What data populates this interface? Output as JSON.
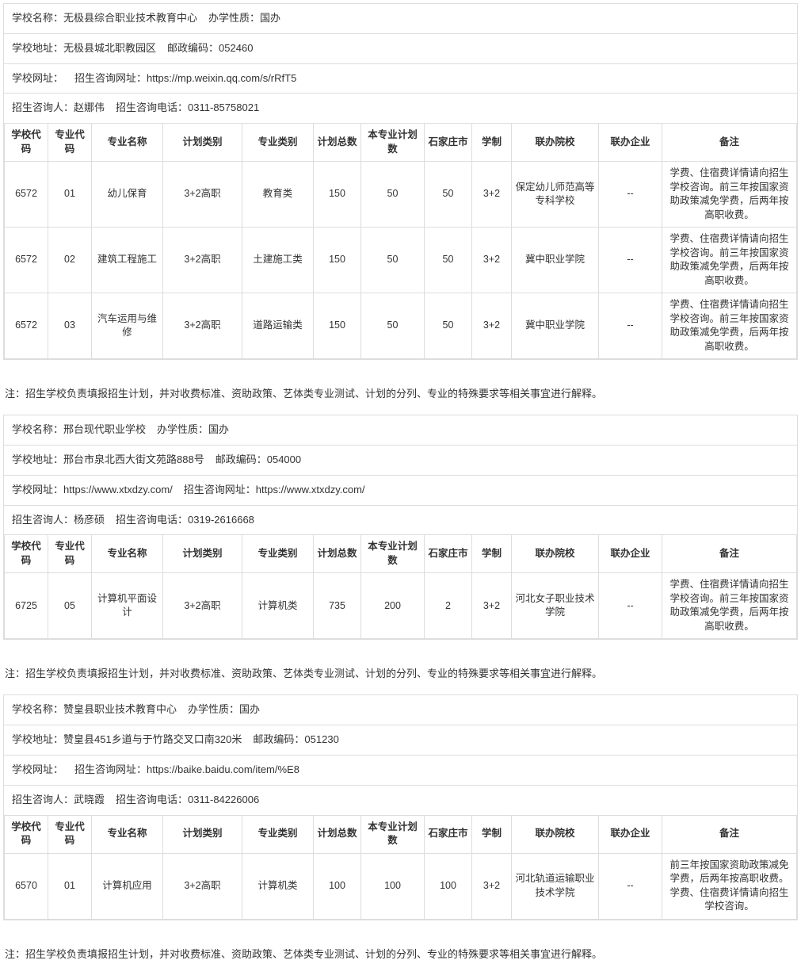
{
  "note_text": "注：招生学校负责填报招生计划，并对收费标准、资助政策、艺体类专业测试、计划的分列、专业的特殊要求等相关事宜进行解释。",
  "headers": {
    "school_code": "学校代码",
    "major_code": "专业代码",
    "major_name": "专业名称",
    "plan_type": "计划类别",
    "major_cat": "专业类别",
    "plan_total": "计划总数",
    "this_plan": "本专业计划数",
    "city": "石家庄市",
    "system": "学制",
    "partner_school": "联办院校",
    "partner_ent": "联办企业",
    "remark": "备注"
  },
  "labels": {
    "school_name": "学校名称：",
    "run_type": "办学性质：",
    "address": "学校地址：",
    "postcode": "邮政编码：",
    "website": "学校网址：",
    "admission_site": "招生咨询网址：",
    "contact": "招生咨询人：",
    "phone": "招生咨询电话："
  },
  "schools": [
    {
      "name": "无极县综合职业技术教育中心",
      "run_type": "国办",
      "address": "无极县城北职教园区",
      "postcode": "052460",
      "website": "",
      "admission_site": "https://mp.weixin.qq.com/s/rRfT5",
      "contact": "赵娜伟",
      "phone": "0311-85758021",
      "rows": [
        {
          "school_code": "6572",
          "major_code": "01",
          "major_name": "幼儿保育",
          "plan_type": "3+2高职",
          "major_cat": "教育类",
          "plan_total": "150",
          "this_plan": "50",
          "city": "50",
          "system": "3+2",
          "partner_school": "保定幼儿师范高等专科学校",
          "partner_ent": "--",
          "remark": "学费、住宿费详情请向招生学校咨询。前三年按国家资助政策减免学费，后两年按高职收费。"
        },
        {
          "school_code": "6572",
          "major_code": "02",
          "major_name": "建筑工程施工",
          "plan_type": "3+2高职",
          "major_cat": "土建施工类",
          "plan_total": "150",
          "this_plan": "50",
          "city": "50",
          "system": "3+2",
          "partner_school": "冀中职业学院",
          "partner_ent": "--",
          "remark": "学费、住宿费详情请向招生学校咨询。前三年按国家资助政策减免学费，后两年按高职收费。"
        },
        {
          "school_code": "6572",
          "major_code": "03",
          "major_name": "汽车运用与维修",
          "plan_type": "3+2高职",
          "major_cat": "道路运输类",
          "plan_total": "150",
          "this_plan": "50",
          "city": "50",
          "system": "3+2",
          "partner_school": "冀中职业学院",
          "partner_ent": "--",
          "remark": "学费、住宿费详情请向招生学校咨询。前三年按国家资助政策减免学费，后两年按高职收费。"
        }
      ]
    },
    {
      "name": "邢台现代职业学校",
      "run_type": "国办",
      "address": "邢台市泉北西大街文苑路888号",
      "postcode": "054000",
      "website": "https://www.xtxdzy.com/",
      "admission_site": "https://www.xtxdzy.com/",
      "contact": "杨彦硕",
      "phone": "0319-2616668",
      "rows": [
        {
          "school_code": "6725",
          "major_code": "05",
          "major_name": "计算机平面设计",
          "plan_type": "3+2高职",
          "major_cat": "计算机类",
          "plan_total": "735",
          "this_plan": "200",
          "city": "2",
          "system": "3+2",
          "partner_school": "河北女子职业技术学院",
          "partner_ent": "--",
          "remark": "学费、住宿费详情请向招生学校咨询。前三年按国家资助政策减免学费，后两年按高职收费。"
        }
      ]
    },
    {
      "name": "赞皇县职业技术教育中心",
      "run_type": "国办",
      "address": "赞皇县451乡道与于竹路交叉口南320米",
      "postcode": "051230",
      "website": "",
      "admission_site": "https://baike.baidu.com/item/%E8",
      "contact": "武晓霞",
      "phone": "0311-84226006",
      "rows": [
        {
          "school_code": "6570",
          "major_code": "01",
          "major_name": "计算机应用",
          "plan_type": "3+2高职",
          "major_cat": "计算机类",
          "plan_total": "100",
          "this_plan": "100",
          "city": "100",
          "system": "3+2",
          "partner_school": "河北轨道运输职业技术学院",
          "partner_ent": "--",
          "remark": "前三年按国家资助政策减免学费，后两年按高职收费。学费、住宿费详情请向招生学校咨询。"
        }
      ]
    }
  ]
}
